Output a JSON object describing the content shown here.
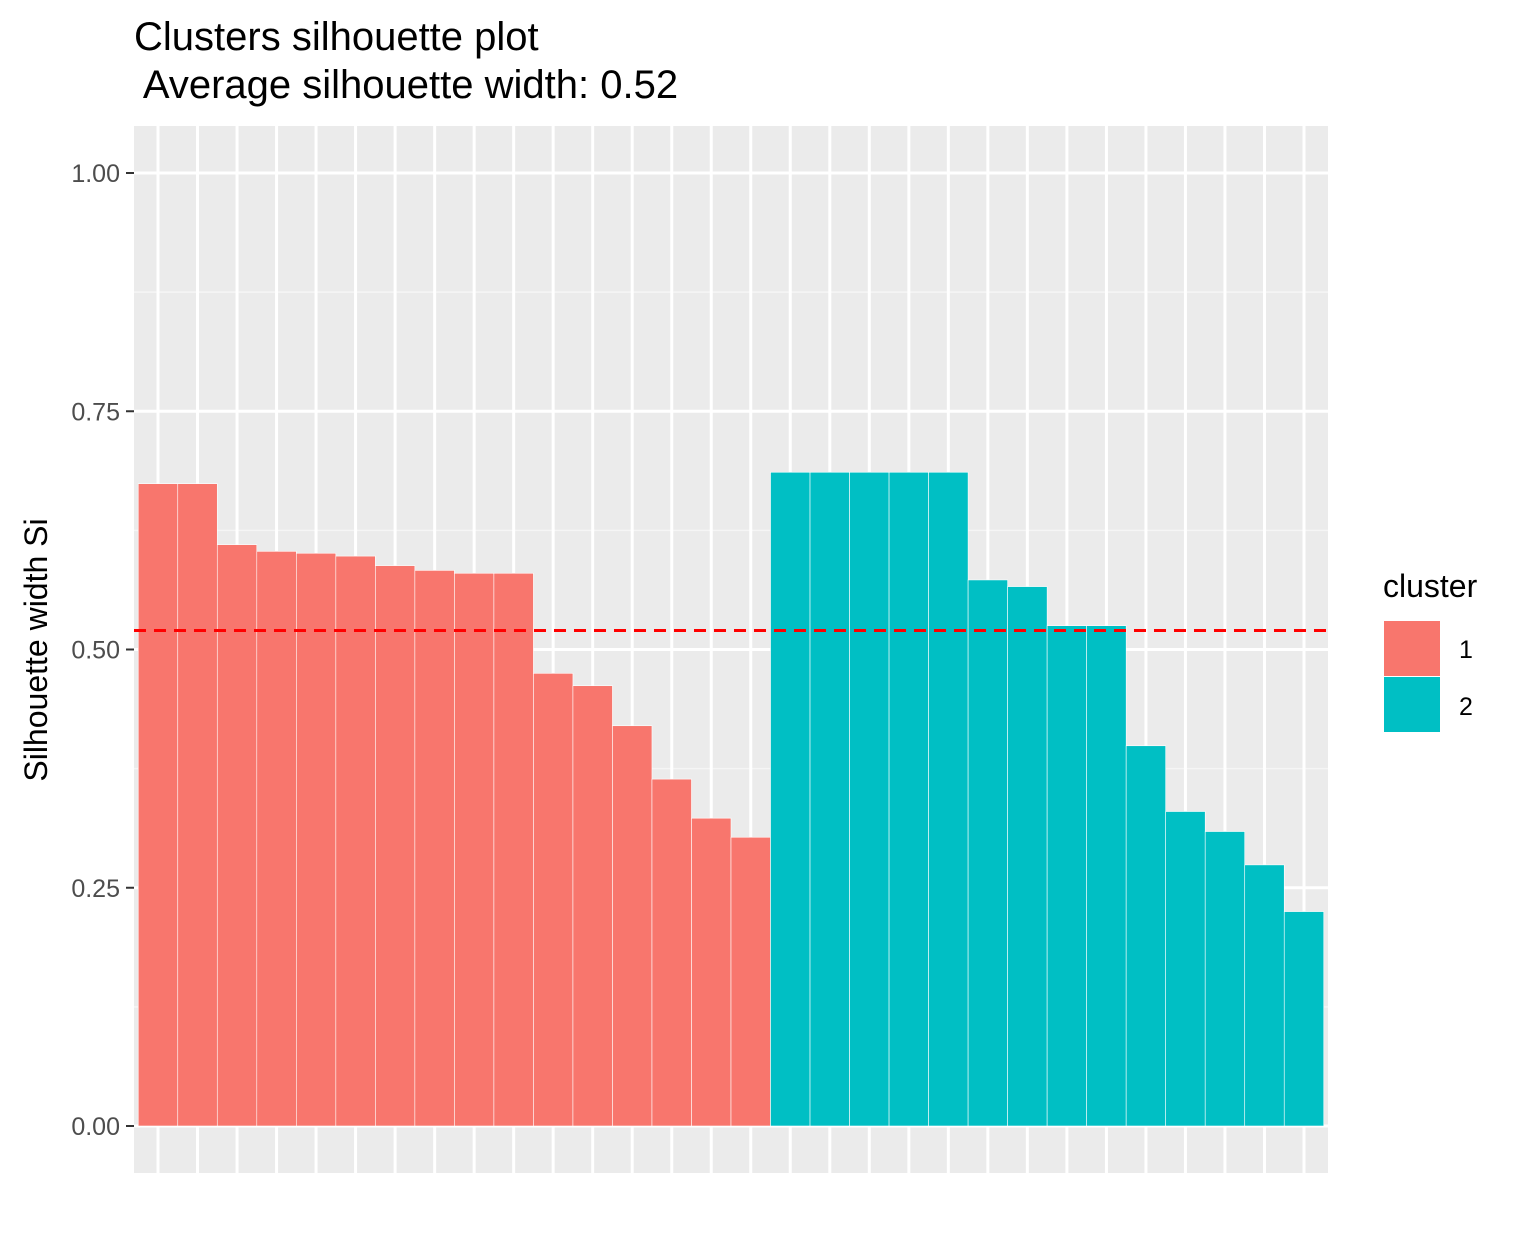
{
  "chart_data": {
    "type": "bar",
    "title": "Clusters silhouette plot",
    "subtitle": " Average silhouette width: 0.52",
    "xlabel": "",
    "ylabel": "Silhouette width Si",
    "ylim": [
      -0.0375,
      1.05
    ],
    "yticks": [
      {
        "value": 0.0,
        "label": "0.00"
      },
      {
        "value": 0.25,
        "label": "0.25"
      },
      {
        "value": 0.5,
        "label": "0.50"
      },
      {
        "value": 0.75,
        "label": "0.75"
      },
      {
        "value": 1.0,
        "label": "1.00"
      }
    ],
    "grid": true,
    "legend": {
      "title": "cluster",
      "position": "right",
      "entries": [
        {
          "label": "1",
          "color": "#F8766D"
        },
        {
          "label": "2",
          "color": "#00BFC4"
        }
      ]
    },
    "average_line": {
      "value": 0.52,
      "color": "#FF0000",
      "style": "dashed"
    },
    "bars": [
      {
        "cluster": "1",
        "value": 0.674
      },
      {
        "cluster": "1",
        "value": 0.674
      },
      {
        "cluster": "1",
        "value": 0.61
      },
      {
        "cluster": "1",
        "value": 0.603
      },
      {
        "cluster": "1",
        "value": 0.601
      },
      {
        "cluster": "1",
        "value": 0.598
      },
      {
        "cluster": "1",
        "value": 0.588
      },
      {
        "cluster": "1",
        "value": 0.583
      },
      {
        "cluster": "1",
        "value": 0.58
      },
      {
        "cluster": "1",
        "value": 0.58
      },
      {
        "cluster": "1",
        "value": 0.475
      },
      {
        "cluster": "1",
        "value": 0.462
      },
      {
        "cluster": "1",
        "value": 0.42
      },
      {
        "cluster": "1",
        "value": 0.364
      },
      {
        "cluster": "1",
        "value": 0.323
      },
      {
        "cluster": "1",
        "value": 0.303
      },
      {
        "cluster": "2",
        "value": 0.686
      },
      {
        "cluster": "2",
        "value": 0.686
      },
      {
        "cluster": "2",
        "value": 0.686
      },
      {
        "cluster": "2",
        "value": 0.686
      },
      {
        "cluster": "2",
        "value": 0.686
      },
      {
        "cluster": "2",
        "value": 0.573
      },
      {
        "cluster": "2",
        "value": 0.566
      },
      {
        "cluster": "2",
        "value": 0.525
      },
      {
        "cluster": "2",
        "value": 0.525
      },
      {
        "cluster": "2",
        "value": 0.399
      },
      {
        "cluster": "2",
        "value": 0.33
      },
      {
        "cluster": "2",
        "value": 0.309
      },
      {
        "cluster": "2",
        "value": 0.274
      },
      {
        "cluster": "2",
        "value": 0.225
      }
    ]
  },
  "colors": {
    "panel_background": "#EBEBEB",
    "grid_major": "#FFFFFF",
    "grid_minor": "#F5F5F5",
    "cluster_1": "#F8766D",
    "cluster_2": "#00BFC4",
    "average_line": "#FF0000"
  }
}
